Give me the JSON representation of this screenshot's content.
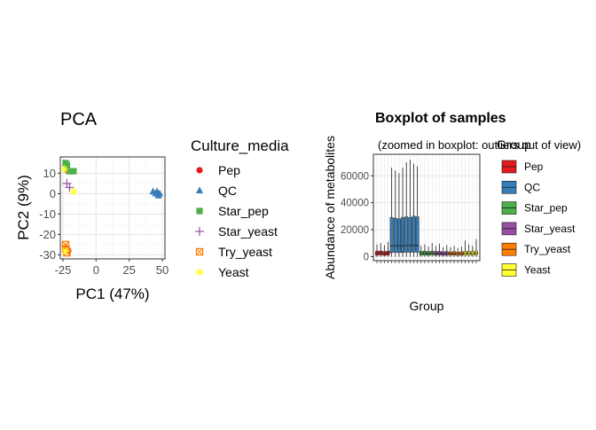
{
  "pca": {
    "title": "PCA",
    "chart_data": {
      "type": "scatter",
      "title": "PCA",
      "xlabel": "PC1 (47%)",
      "ylabel": "PC2 (9%)",
      "xlim": [
        -27,
        52
      ],
      "ylim": [
        -32,
        18
      ],
      "xticks": [
        -25,
        0,
        25,
        50
      ],
      "yticks": [
        -30,
        -20,
        -10,
        0,
        10
      ],
      "xtick_labels": [
        "-25",
        "0",
        "25",
        "50"
      ],
      "ytick_labels": [
        "-30",
        "-20",
        "-10",
        "0",
        "10"
      ],
      "grid": true,
      "legend_title": "Culture_media",
      "legend_position": "right",
      "series": [
        {
          "name": "Pep",
          "color": "#E41A1C",
          "marker": "circle",
          "points": [
            [
              -21,
              11
            ],
            [
              -22,
              -27
            ],
            [
              -21,
              -28
            ]
          ]
        },
        {
          "name": "QC",
          "color": "#377EB8",
          "marker": "triangle",
          "points": [
            [
              43,
              1
            ],
            [
              45,
              0
            ],
            [
              46,
              1
            ],
            [
              47,
              -1
            ],
            [
              48,
              0
            ]
          ]
        },
        {
          "name": "Star_pep",
          "color": "#4DAF4A",
          "marker": "square",
          "points": [
            [
              -23,
              15
            ],
            [
              -22,
              14
            ],
            [
              -17,
              11
            ],
            [
              -20,
              11
            ]
          ]
        },
        {
          "name": "Star_yeast",
          "color": "#984EA3",
          "marker": "plus",
          "points": [
            [
              -22,
              5
            ],
            [
              -20,
              3
            ]
          ]
        },
        {
          "name": "Try_yeast",
          "color": "#FF7F00",
          "marker": "boxx",
          "points": [
            [
              -23,
              -25
            ],
            [
              -22,
              -29
            ],
            [
              -23,
              -27
            ]
          ]
        },
        {
          "name": "Yeast",
          "color": "#FFFF33",
          "marker": "asterisk",
          "points": [
            [
              -24,
              12
            ],
            [
              -17,
              1
            ],
            [
              -23,
              -28
            ]
          ]
        }
      ]
    }
  },
  "boxplot": {
    "title": "Boxplot of samples",
    "subtitle": "(zoomed in boxplot: outliers out of view)",
    "chart_data": {
      "type": "box",
      "title": "Boxplot of samples",
      "subtitle": "(zoomed in boxplot: outliers out of view)",
      "xlabel": "Group",
      "ylabel": "Abundance of metabolites",
      "ylim": [
        -3000,
        76000
      ],
      "yticks": [
        0,
        20000,
        40000,
        60000
      ],
      "ytick_labels": [
        "0",
        "20000",
        "40000",
        "60000"
      ],
      "grid": true,
      "legend_title": "Group",
      "legend_position": "right",
      "groups": [
        {
          "name": "Pep",
          "color": "#E41A1C",
          "boxes": [
            [
              0,
              1000,
              2500,
              4000,
              9000
            ],
            [
              0,
              1200,
              2700,
              4200,
              10000
            ],
            [
              0,
              900,
              2300,
              3800,
              8500
            ],
            [
              0,
              1100,
              2600,
              4100,
              11000
            ]
          ]
        },
        {
          "name": "QC",
          "color": "#377EB8",
          "boxes": [
            [
              0,
              3000,
              8000,
              29000,
              66000
            ],
            [
              0,
              3200,
              8200,
              28500,
              64000
            ],
            [
              0,
              3000,
              8100,
              28000,
              62000
            ],
            [
              0,
              3100,
              8000,
              29000,
              66000
            ],
            [
              0,
              3300,
              8300,
              29500,
              70000
            ],
            [
              0,
              3200,
              8200,
              29000,
              72000
            ],
            [
              0,
              3400,
              8400,
              30000,
              69000
            ],
            [
              0,
              3300,
              8300,
              29500,
              67000
            ]
          ]
        },
        {
          "name": "Star_pep",
          "color": "#4DAF4A",
          "boxes": [
            [
              0,
              1000,
              2400,
              3900,
              8000
            ],
            [
              0,
              1100,
              2500,
              4000,
              9000
            ],
            [
              0,
              1000,
              2300,
              3700,
              7500
            ],
            [
              0,
              1200,
              2600,
              4100,
              10000
            ]
          ]
        },
        {
          "name": "Star_yeast",
          "color": "#984EA3",
          "boxes": [
            [
              0,
              1000,
              2300,
              3800,
              8000
            ],
            [
              0,
              1100,
              2400,
              3900,
              9500
            ],
            [
              0,
              900,
              2200,
              3600,
              7000
            ],
            [
              0,
              1000,
              2300,
              3800,
              8500
            ]
          ]
        },
        {
          "name": "Try_yeast",
          "color": "#FF7F00",
          "boxes": [
            [
              0,
              1000,
              2200,
              3500,
              7000
            ],
            [
              0,
              1100,
              2300,
              3700,
              8000
            ],
            [
              0,
              900,
              2100,
              3400,
              6500
            ],
            [
              0,
              1000,
              2200,
              3600,
              7500
            ]
          ]
        },
        {
          "name": "Yeast",
          "color": "#FFFF33",
          "boxes": [
            [
              0,
              1000,
              2400,
              3900,
              12000
            ],
            [
              0,
              1100,
              2500,
              4000,
              9000
            ],
            [
              0,
              1000,
              2300,
              3800,
              8000
            ],
            [
              0,
              1200,
              2600,
              4200,
              13000
            ]
          ]
        }
      ]
    }
  }
}
